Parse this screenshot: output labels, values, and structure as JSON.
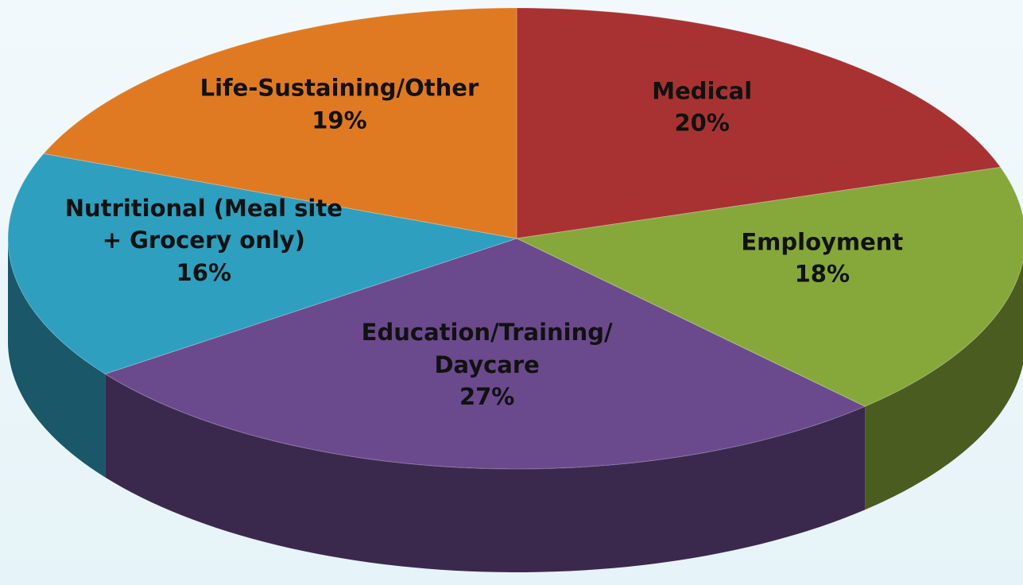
{
  "chart_data": {
    "type": "pie",
    "categories": [
      "Medical",
      "Employment",
      "Education/Training/Daycare",
      "Nutritional (Meal site + Grocery only)",
      "Life-Sustaining/Other"
    ],
    "values": [
      20,
      18,
      27,
      16,
      19
    ],
    "value_labels": [
      "20%",
      "18%",
      "27%",
      "16%",
      "19%"
    ],
    "colors": [
      "#a83232",
      "#86a83a",
      "#6a4a8c",
      "#2e9fbf",
      "#e07a22"
    ]
  }
}
